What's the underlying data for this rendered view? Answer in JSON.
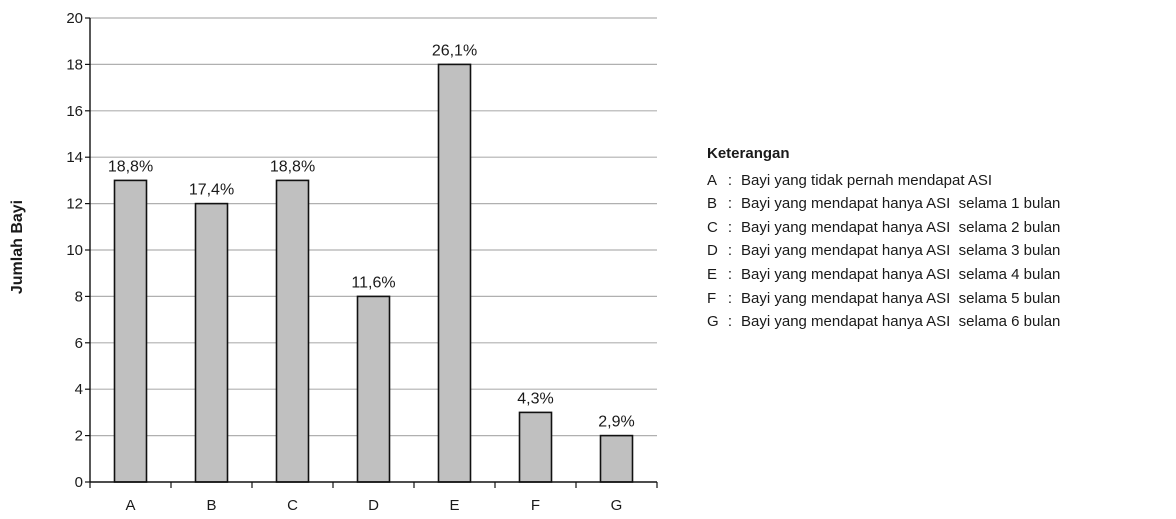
{
  "chart_data": {
    "type": "bar",
    "categories": [
      "A",
      "B",
      "C",
      "D",
      "E",
      "F",
      "G"
    ],
    "values": [
      13,
      12,
      13,
      8,
      18,
      3,
      2
    ],
    "data_labels": [
      "18,8%",
      "17,4%",
      "18,8%",
      "11,6%",
      "26,1%",
      "4,3%",
      "2,9%"
    ],
    "ylabel": "Jumlah Bayi",
    "xlabel": "",
    "title": "",
    "ylim": [
      0,
      20
    ],
    "yticks": [
      0,
      2,
      4,
      6,
      8,
      10,
      12,
      14,
      16,
      18,
      20
    ],
    "grid": true,
    "legend_position": "right",
    "bar_color": "#c0c0c0",
    "bar_edge_color": "#111111",
    "grid_color": "#b0b0b0"
  },
  "legend": {
    "title": "Keterangan",
    "items": [
      {
        "key": "A",
        "text": "Bayi yang tidak pernah mendapat ASI"
      },
      {
        "key": "B",
        "text": "Bayi yang mendapat hanya ASI  selama 1 bulan"
      },
      {
        "key": "C",
        "text": "Bayi yang mendapat hanya ASI  selama 2 bulan"
      },
      {
        "key": "D",
        "text": "Bayi yang mendapat hanya ASI  selama 3 bulan"
      },
      {
        "key": "E",
        "text": "Bayi yang mendapat hanya ASI  selama 4 bulan"
      },
      {
        "key": "F",
        "text": "Bayi yang mendapat hanya ASI  selama 5 bulan"
      },
      {
        "key": "G",
        "text": "Bayi yang mendapat hanya ASI  selama 6 bulan"
      }
    ]
  }
}
